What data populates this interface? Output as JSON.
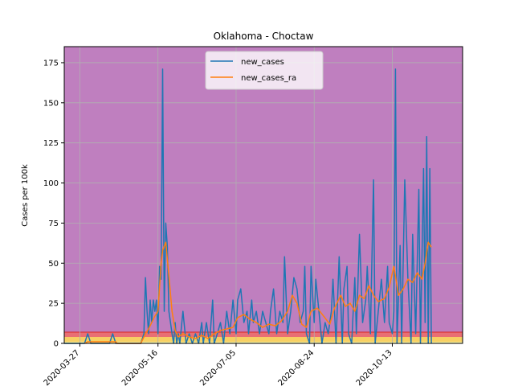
{
  "chart_data": {
    "type": "line",
    "title": "Oklahoma - Choctaw",
    "xlabel": "",
    "ylabel": "Cases per 100k",
    "ylim": [
      0,
      185
    ],
    "xlim": [
      "2020-03-17",
      "2020-11-27"
    ],
    "x_ticks": [
      "2020-03-27",
      "2020-05-16",
      "2020-07-05",
      "2020-08-24",
      "2020-10-13"
    ],
    "y_ticks": [
      0,
      25,
      50,
      75,
      100,
      125,
      150,
      175
    ],
    "grid": true,
    "legend_position": "top-center",
    "background_bands": [
      {
        "from": 0,
        "to": 1,
        "color": "#f6f1a3"
      },
      {
        "from": 1,
        "to": 4,
        "color": "#f7d063"
      },
      {
        "from": 4,
        "to": 7,
        "color": "#e96f73"
      },
      {
        "from": 7,
        "to": 185,
        "color": "#bf7fbf"
      }
    ],
    "series": [
      {
        "name": "new_cases",
        "color": "#1f77b4",
        "points": [
          [
            "2020-03-17",
            0
          ],
          [
            "2020-03-30",
            0
          ],
          [
            "2020-04-01",
            6
          ],
          [
            "2020-04-03",
            0
          ],
          [
            "2020-04-15",
            0
          ],
          [
            "2020-04-17",
            6
          ],
          [
            "2020-04-19",
            0
          ],
          [
            "2020-05-05",
            0
          ],
          [
            "2020-05-07",
            6
          ],
          [
            "2020-05-08",
            41
          ],
          [
            "2020-05-09",
            20
          ],
          [
            "2020-05-10",
            6
          ],
          [
            "2020-05-11",
            27
          ],
          [
            "2020-05-12",
            13
          ],
          [
            "2020-05-13",
            27
          ],
          [
            "2020-05-14",
            20
          ],
          [
            "2020-05-15",
            27
          ],
          [
            "2020-05-16",
            6
          ],
          [
            "2020-05-17",
            48
          ],
          [
            "2020-05-18",
            40
          ],
          [
            "2020-05-19",
            171
          ],
          [
            "2020-05-20",
            20
          ],
          [
            "2020-05-21",
            75
          ],
          [
            "2020-05-22",
            60
          ],
          [
            "2020-05-23",
            20
          ],
          [
            "2020-05-24",
            13
          ],
          [
            "2020-05-25",
            6
          ],
          [
            "2020-05-26",
            0
          ],
          [
            "2020-05-27",
            13
          ],
          [
            "2020-05-28",
            0
          ],
          [
            "2020-05-29",
            6
          ],
          [
            "2020-05-30",
            0
          ],
          [
            "2020-06-01",
            20
          ],
          [
            "2020-06-03",
            0
          ],
          [
            "2020-06-05",
            6
          ],
          [
            "2020-06-07",
            0
          ],
          [
            "2020-06-09",
            6
          ],
          [
            "2020-06-11",
            0
          ],
          [
            "2020-06-13",
            13
          ],
          [
            "2020-06-14",
            0
          ],
          [
            "2020-06-16",
            13
          ],
          [
            "2020-06-18",
            0
          ],
          [
            "2020-06-20",
            27
          ],
          [
            "2020-06-21",
            0
          ],
          [
            "2020-06-23",
            6
          ],
          [
            "2020-06-25",
            13
          ],
          [
            "2020-06-27",
            0
          ],
          [
            "2020-06-29",
            20
          ],
          [
            "2020-07-01",
            6
          ],
          [
            "2020-07-03",
            27
          ],
          [
            "2020-07-05",
            6
          ],
          [
            "2020-07-06",
            27
          ],
          [
            "2020-07-08",
            34
          ],
          [
            "2020-07-10",
            13
          ],
          [
            "2020-07-12",
            20
          ],
          [
            "2020-07-13",
            6
          ],
          [
            "2020-07-15",
            27
          ],
          [
            "2020-07-16",
            13
          ],
          [
            "2020-07-18",
            20
          ],
          [
            "2020-07-20",
            6
          ],
          [
            "2020-07-22",
            20
          ],
          [
            "2020-07-24",
            13
          ],
          [
            "2020-07-26",
            6
          ],
          [
            "2020-07-27",
            20
          ],
          [
            "2020-07-29",
            34
          ],
          [
            "2020-07-31",
            6
          ],
          [
            "2020-08-02",
            20
          ],
          [
            "2020-08-04",
            13
          ],
          [
            "2020-08-05",
            54
          ],
          [
            "2020-08-07",
            6
          ],
          [
            "2020-08-09",
            20
          ],
          [
            "2020-08-11",
            41
          ],
          [
            "2020-08-13",
            34
          ],
          [
            "2020-08-15",
            13
          ],
          [
            "2020-08-17",
            20
          ],
          [
            "2020-08-18",
            48
          ],
          [
            "2020-08-19",
            6
          ],
          [
            "2020-08-21",
            0
          ],
          [
            "2020-08-22",
            48
          ],
          [
            "2020-08-24",
            13
          ],
          [
            "2020-08-25",
            40
          ],
          [
            "2020-08-27",
            20
          ],
          [
            "2020-08-29",
            0
          ],
          [
            "2020-08-31",
            13
          ],
          [
            "2020-09-02",
            6
          ],
          [
            "2020-09-04",
            20
          ],
          [
            "2020-09-05",
            40
          ],
          [
            "2020-09-07",
            0
          ],
          [
            "2020-09-09",
            54
          ],
          [
            "2020-09-11",
            0
          ],
          [
            "2020-09-12",
            34
          ],
          [
            "2020-09-14",
            48
          ],
          [
            "2020-09-15",
            6
          ],
          [
            "2020-09-17",
            0
          ],
          [
            "2020-09-19",
            41
          ],
          [
            "2020-09-20",
            6
          ],
          [
            "2020-09-22",
            68
          ],
          [
            "2020-09-24",
            13
          ],
          [
            "2020-09-26",
            27
          ],
          [
            "2020-09-27",
            48
          ],
          [
            "2020-09-29",
            6
          ],
          [
            "2020-10-01",
            102
          ],
          [
            "2020-10-02",
            0
          ],
          [
            "2020-10-04",
            20
          ],
          [
            "2020-10-06",
            40
          ],
          [
            "2020-10-08",
            13
          ],
          [
            "2020-10-10",
            48
          ],
          [
            "2020-10-11",
            13
          ],
          [
            "2020-10-13",
            6
          ],
          [
            "2020-10-14",
            20
          ],
          [
            "2020-10-15",
            171
          ],
          [
            "2020-10-16",
            0
          ],
          [
            "2020-10-18",
            61
          ],
          [
            "2020-10-19",
            0
          ],
          [
            "2020-10-21",
            102
          ],
          [
            "2020-10-23",
            40
          ],
          [
            "2020-10-25",
            0
          ],
          [
            "2020-10-26",
            68
          ],
          [
            "2020-10-28",
            6
          ],
          [
            "2020-10-30",
            96
          ],
          [
            "2020-10-31",
            0
          ],
          [
            "2020-11-02",
            109
          ],
          [
            "2020-11-03",
            13
          ],
          [
            "2020-11-04",
            129
          ],
          [
            "2020-11-05",
            0
          ],
          [
            "2020-11-06",
            109
          ],
          [
            "2020-11-07",
            0
          ]
        ]
      },
      {
        "name": "new_cases_ra",
        "color": "#ff7f0e",
        "points": [
          [
            "2020-03-30",
            0
          ],
          [
            "2020-04-01",
            1
          ],
          [
            "2020-04-19",
            1
          ],
          [
            "2020-04-20",
            0
          ],
          [
            "2020-05-05",
            0
          ],
          [
            "2020-05-08",
            6
          ],
          [
            "2020-05-10",
            9
          ],
          [
            "2020-05-12",
            13
          ],
          [
            "2020-05-14",
            17
          ],
          [
            "2020-05-16",
            20
          ],
          [
            "2020-05-18",
            50
          ],
          [
            "2020-05-19",
            58
          ],
          [
            "2020-05-21",
            63
          ],
          [
            "2020-05-23",
            42
          ],
          [
            "2020-05-25",
            20
          ],
          [
            "2020-05-27",
            8
          ],
          [
            "2020-05-29",
            4
          ],
          [
            "2020-06-01",
            6
          ],
          [
            "2020-06-05",
            4
          ],
          [
            "2020-06-09",
            3
          ],
          [
            "2020-06-13",
            5
          ],
          [
            "2020-06-17",
            3
          ],
          [
            "2020-06-21",
            6
          ],
          [
            "2020-06-25",
            8
          ],
          [
            "2020-06-29",
            9
          ],
          [
            "2020-07-03",
            10
          ],
          [
            "2020-07-06",
            16
          ],
          [
            "2020-07-10",
            18
          ],
          [
            "2020-07-14",
            15
          ],
          [
            "2020-07-18",
            13
          ],
          [
            "2020-07-22",
            10
          ],
          [
            "2020-07-26",
            12
          ],
          [
            "2020-07-30",
            11
          ],
          [
            "2020-08-03",
            14
          ],
          [
            "2020-08-07",
            20
          ],
          [
            "2020-08-10",
            30
          ],
          [
            "2020-08-13",
            25
          ],
          [
            "2020-08-16",
            12
          ],
          [
            "2020-08-19",
            10
          ],
          [
            "2020-08-22",
            20
          ],
          [
            "2020-08-26",
            22
          ],
          [
            "2020-08-30",
            17
          ],
          [
            "2020-09-03",
            12
          ],
          [
            "2020-09-06",
            22
          ],
          [
            "2020-09-10",
            30
          ],
          [
            "2020-09-13",
            23
          ],
          [
            "2020-09-16",
            25
          ],
          [
            "2020-09-19",
            20
          ],
          [
            "2020-09-22",
            30
          ],
          [
            "2020-09-25",
            28
          ],
          [
            "2020-09-28",
            36
          ],
          [
            "2020-10-01",
            30
          ],
          [
            "2020-10-04",
            26
          ],
          [
            "2020-10-08",
            28
          ],
          [
            "2020-10-11",
            35
          ],
          [
            "2020-10-14",
            48
          ],
          [
            "2020-10-17",
            30
          ],
          [
            "2020-10-20",
            34
          ],
          [
            "2020-10-23",
            40
          ],
          [
            "2020-10-26",
            38
          ],
          [
            "2020-10-29",
            44
          ],
          [
            "2020-11-01",
            40
          ],
          [
            "2020-11-03",
            50
          ],
          [
            "2020-11-05",
            63
          ],
          [
            "2020-11-07",
            60
          ]
        ]
      }
    ]
  }
}
